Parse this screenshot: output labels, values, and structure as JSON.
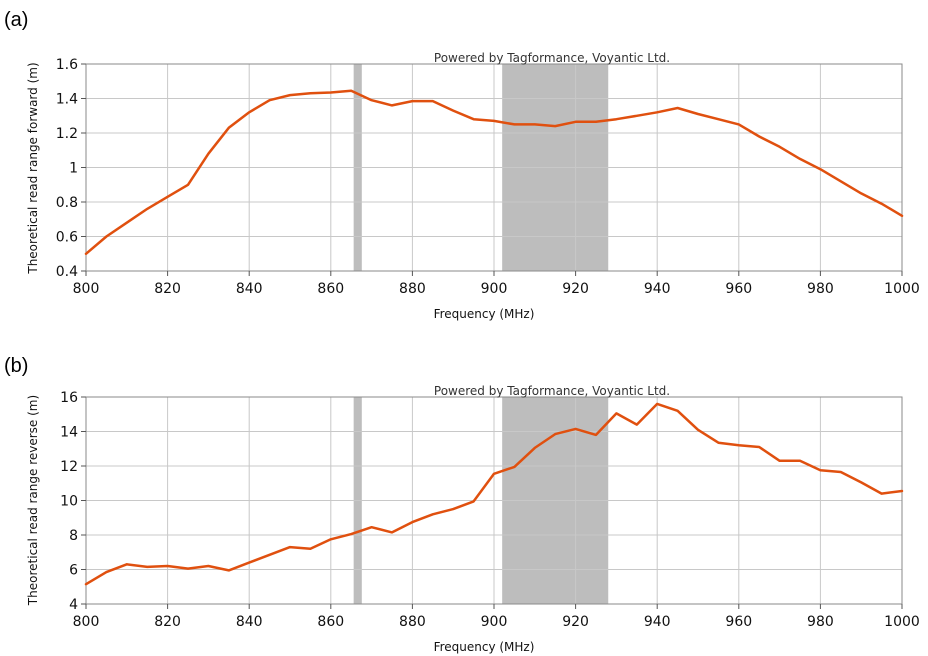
{
  "chart_data": [
    {
      "type": "line",
      "panel_label": "(a)",
      "watermark": "Powered by Tagformance, Voyantic Ltd.",
      "xlabel": "Frequency (MHz)",
      "ylabel": "Theoretical read range forward (m)",
      "xlim": [
        800,
        1000
      ],
      "ylim": [
        0.4,
        1.6
      ],
      "xticks": [
        800,
        820,
        840,
        860,
        880,
        900,
        920,
        940,
        960,
        980,
        1000
      ],
      "yticks": [
        0.4,
        0.6,
        0.8,
        1,
        1.2,
        1.4,
        1.6
      ],
      "grid": true,
      "line_color": "#e0500f",
      "band_color": "#bdbdbd",
      "shaded_bands": [
        [
          865.6,
          867.6
        ],
        [
          902,
          928
        ]
      ],
      "series": [
        {
          "x": [
            800,
            805,
            810,
            815,
            820,
            825,
            830,
            835,
            840,
            845,
            850,
            855,
            860,
            865,
            870,
            875,
            880,
            885,
            890,
            895,
            900,
            905,
            910,
            915,
            920,
            925,
            930,
            935,
            940,
            945,
            950,
            955,
            960,
            965,
            970,
            975,
            980,
            985,
            990,
            995,
            1000
          ],
          "y": [
            0.5,
            0.6,
            0.68,
            0.76,
            0.83,
            0.9,
            1.08,
            1.23,
            1.32,
            1.39,
            1.42,
            1.43,
            1.435,
            1.445,
            1.39,
            1.36,
            1.385,
            1.385,
            1.33,
            1.28,
            1.27,
            1.25,
            1.25,
            1.24,
            1.265,
            1.265,
            1.28,
            1.3,
            1.32,
            1.345,
            1.31,
            1.28,
            1.25,
            1.18,
            1.12,
            1.05,
            0.99,
            0.92,
            0.85,
            0.79,
            0.72
          ]
        }
      ]
    },
    {
      "type": "line",
      "panel_label": "(b)",
      "watermark": "Powered by Tagformance, Voyantic Ltd.",
      "xlabel": "Frequency (MHz)",
      "ylabel": "Theoretical read range reverse (m)",
      "xlim": [
        800,
        1000
      ],
      "ylim": [
        4,
        16
      ],
      "xticks": [
        800,
        820,
        840,
        860,
        880,
        900,
        920,
        940,
        960,
        980,
        1000
      ],
      "yticks": [
        4,
        6,
        8,
        10,
        12,
        14,
        16
      ],
      "grid": true,
      "line_color": "#e0500f",
      "band_color": "#bdbdbd",
      "shaded_bands": [
        [
          865.6,
          867.6
        ],
        [
          902,
          928
        ]
      ],
      "series": [
        {
          "x": [
            800,
            805,
            810,
            815,
            820,
            825,
            830,
            835,
            840,
            845,
            850,
            855,
            860,
            865,
            870,
            875,
            880,
            885,
            890,
            895,
            900,
            905,
            910,
            915,
            920,
            925,
            930,
            935,
            940,
            945,
            950,
            955,
            960,
            965,
            970,
            975,
            980,
            985,
            990,
            995,
            1000
          ],
          "y": [
            5.15,
            5.85,
            6.3,
            6.15,
            6.2,
            6.05,
            6.2,
            5.95,
            6.4,
            6.85,
            7.3,
            7.2,
            7.75,
            8.05,
            8.45,
            8.15,
            8.75,
            9.2,
            9.5,
            9.95,
            11.55,
            11.95,
            13.05,
            13.85,
            14.15,
            13.8,
            15.05,
            14.4,
            15.6,
            15.2,
            14.1,
            13.35,
            13.2,
            13.1,
            12.3,
            12.3,
            11.75,
            11.65,
            11.05,
            10.4,
            10.55
          ]
        }
      ]
    }
  ]
}
